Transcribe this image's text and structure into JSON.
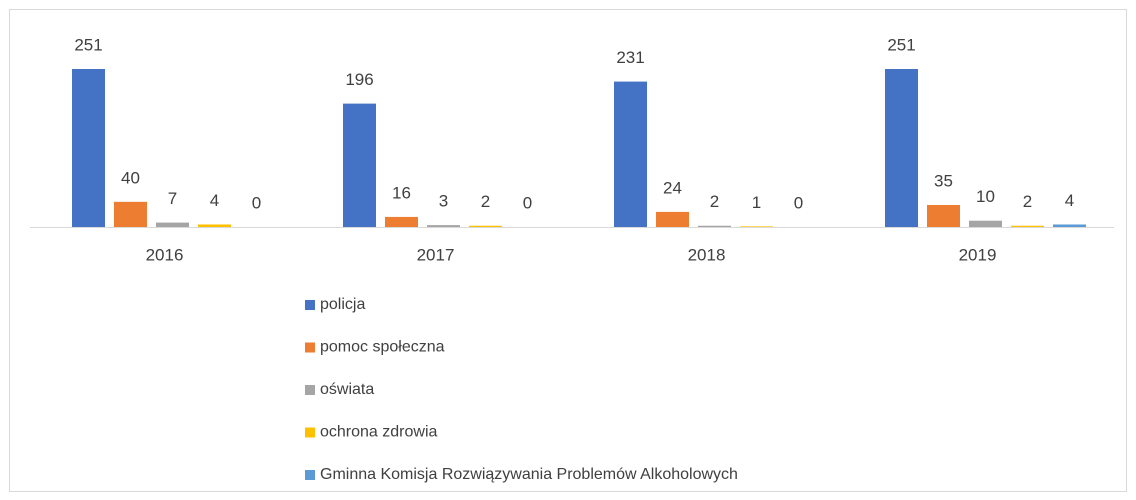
{
  "chart_data": {
    "type": "bar",
    "categories": [
      "2016",
      "2017",
      "2018",
      "2019"
    ],
    "series": [
      {
        "name": "policja",
        "color": "#4472c4",
        "values": [
          251,
          196,
          231,
          251
        ]
      },
      {
        "name": "pomoc społeczna",
        "color": "#ed7d31",
        "values": [
          40,
          16,
          24,
          35
        ]
      },
      {
        "name": "oświata",
        "color": "#a5a5a5",
        "values": [
          7,
          3,
          2,
          10
        ]
      },
      {
        "name": "ochrona zdrowia",
        "color": "#ffc000",
        "values": [
          4,
          2,
          1,
          2
        ]
      },
      {
        "name": "Gminna Komisja Rozwiązywania Problemów Alkoholowych",
        "color": "#5b9bd5",
        "values": [
          0,
          0,
          0,
          4
        ]
      }
    ],
    "legend": "bottom"
  }
}
